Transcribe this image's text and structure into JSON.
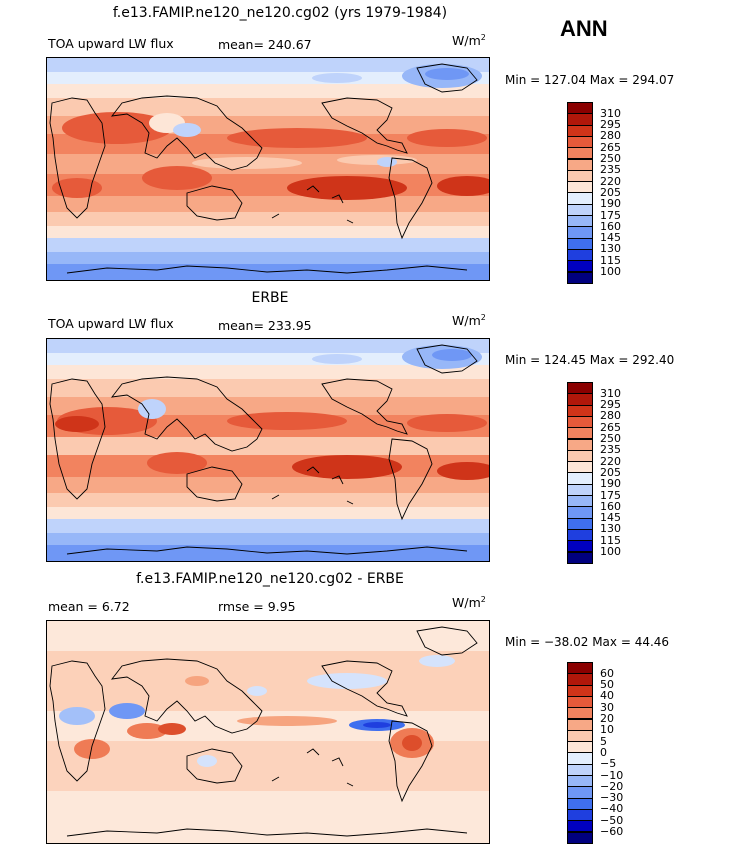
{
  "season": "ANN",
  "colors": {
    "levels15": [
      "#00007f",
      "#0000bf",
      "#1f3fdf",
      "#3f6fef",
      "#6f97f5",
      "#97b7f8",
      "#bfd3fb",
      "#e3eefd",
      "#fde6d7",
      "#fbcab0",
      "#f7a886",
      "#f2835f",
      "#e65a3a",
      "#cf3419",
      "#b0170a",
      "#8a0000"
    ],
    "diff13": [
      "#00007f",
      "#0000bf",
      "#1f3fdf",
      "#3f6fef",
      "#6f97f5",
      "#a3c0f9",
      "#d5e3fc",
      "#fde8da",
      "#fbcab0",
      "#f6a47f",
      "#ef7b55",
      "#dd4e2b",
      "#c22510",
      "#8a0000"
    ]
  },
  "panels": [
    {
      "title": "f.e13.FAMIP.ne120_ne120.cg02 (yrs 1979-1984)",
      "left_label": "TOA upward LW flux",
      "mean_label": "mean= 240.67",
      "units": "W/m",
      "units_sup": "2",
      "minmax": "Min = 127.04 Max = 294.07"
    },
    {
      "title": "ERBE",
      "left_label": "TOA upward LW flux",
      "mean_label": "mean= 233.95",
      "units": "W/m",
      "units_sup": "2",
      "minmax": "Min = 124.45 Max = 292.40"
    },
    {
      "title": "f.e13.FAMIP.ne120_ne120.cg02 - ERBE",
      "left_label": "mean =   6.72",
      "mean_label": "rmse =   9.95",
      "units": "W/m",
      "units_sup": "2",
      "minmax": "Min = −38.02 Max =  44.46"
    }
  ],
  "chart_data": [
    {
      "type": "heatmap",
      "title": "f.e13.FAMIP.ne120_ne120.cg02 (yrs 1979-1984)",
      "variable": "TOA upward LW flux",
      "units": "W/m2",
      "mean": 240.67,
      "min": 127.04,
      "max": 294.07,
      "contour_levels": [
        310,
        295,
        280,
        265,
        250,
        235,
        220,
        205,
        190,
        175,
        160,
        145,
        130,
        115,
        100
      ],
      "projection": "cylindrical equidistant, centered on 180"
    },
    {
      "type": "heatmap",
      "title": "ERBE",
      "variable": "TOA upward LW flux",
      "units": "W/m2",
      "mean": 233.95,
      "min": 124.45,
      "max": 292.4,
      "contour_levels": [
        310,
        295,
        280,
        265,
        250,
        235,
        220,
        205,
        190,
        175,
        160,
        145,
        130,
        115,
        100
      ],
      "projection": "cylindrical equidistant, centered on 180"
    },
    {
      "type": "heatmap",
      "title": "f.e13.FAMIP.ne120_ne120.cg02 - ERBE",
      "units": "W/m2",
      "mean": 6.72,
      "rmse": 9.95,
      "min": -38.02,
      "max": 44.46,
      "contour_levels": [
        "60",
        "50",
        "40",
        "30",
        "20",
        "10",
        "5",
        "0",
        "−5",
        "−10",
        "−20",
        "−30",
        "−40",
        "−50",
        "−60"
      ],
      "projection": "cylindrical equidistant, centered on 180"
    }
  ]
}
